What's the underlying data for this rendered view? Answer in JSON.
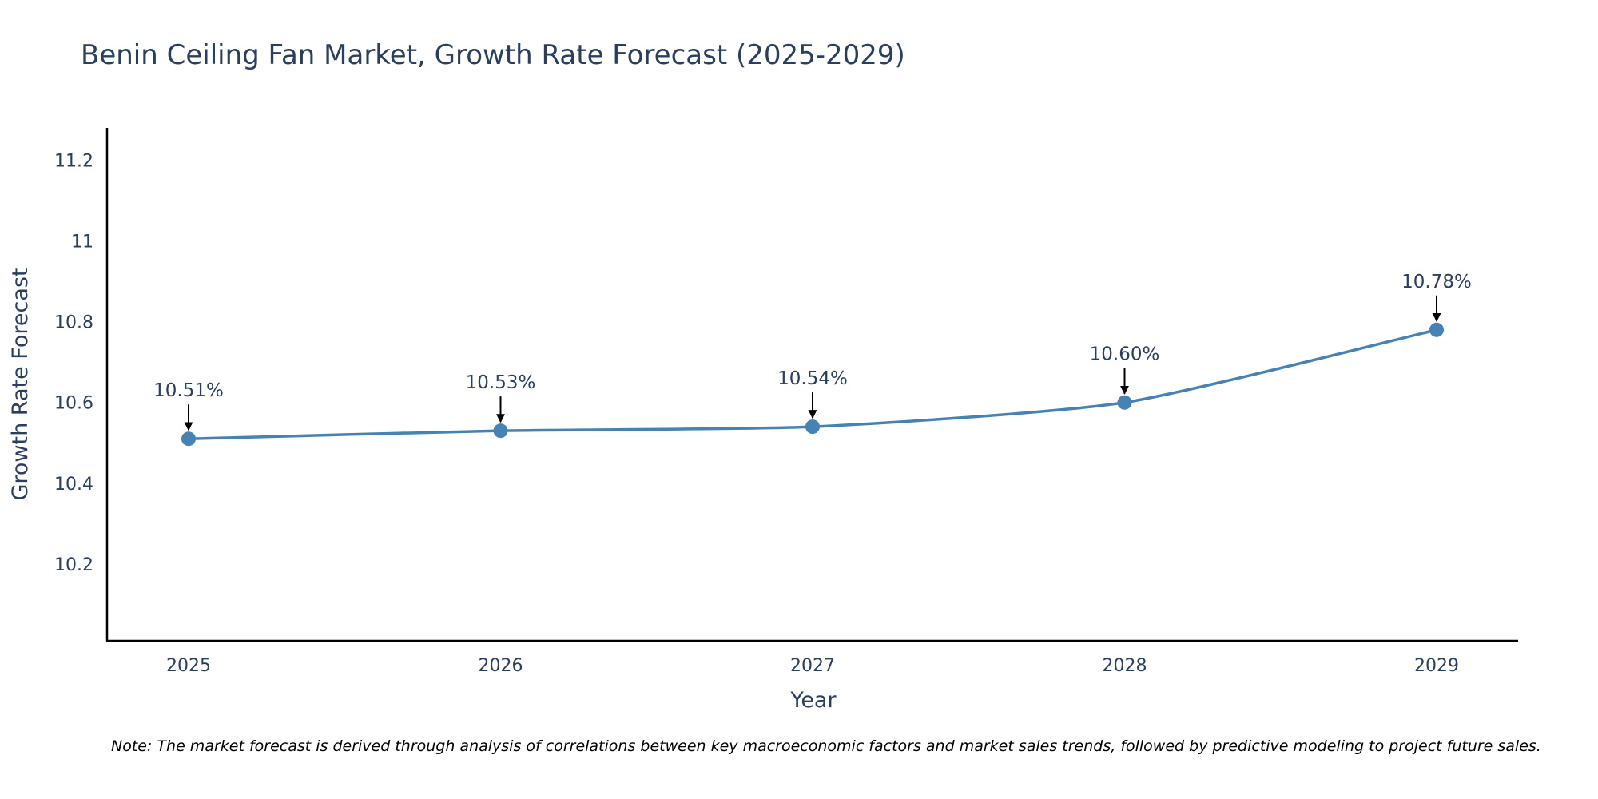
{
  "chart_data": {
    "type": "line",
    "title": "Benin Ceiling Fan Market, Growth Rate Forecast (2025-2029)",
    "xlabel": "Year",
    "ylabel": "Growth Rate Forecast",
    "categories": [
      "2025",
      "2026",
      "2027",
      "2028",
      "2029"
    ],
    "values": [
      10.51,
      10.53,
      10.54,
      10.6,
      10.78
    ],
    "data_labels": [
      "10.51%",
      "10.53%",
      "10.54%",
      "10.60%",
      "10.78%"
    ],
    "ylim": [
      10.01,
      11.28
    ],
    "yticks": [
      10.2,
      10.4,
      10.6,
      10.8,
      11,
      11.2
    ],
    "ytick_labels": [
      "10.2",
      "10.4",
      "10.6",
      "10.8",
      "11",
      "11.2"
    ],
    "grid": false,
    "line_shape": "spline",
    "colors": {
      "line": "#4682b4",
      "marker": "#4682b4",
      "arrow": "#000000",
      "text": "#2a3f5f",
      "axis": "#000000"
    },
    "note": "Note: The market forecast is derived through analysis of correlations between key macroeconomic factors and market sales trends, followed by predictive modeling to project future sales."
  }
}
